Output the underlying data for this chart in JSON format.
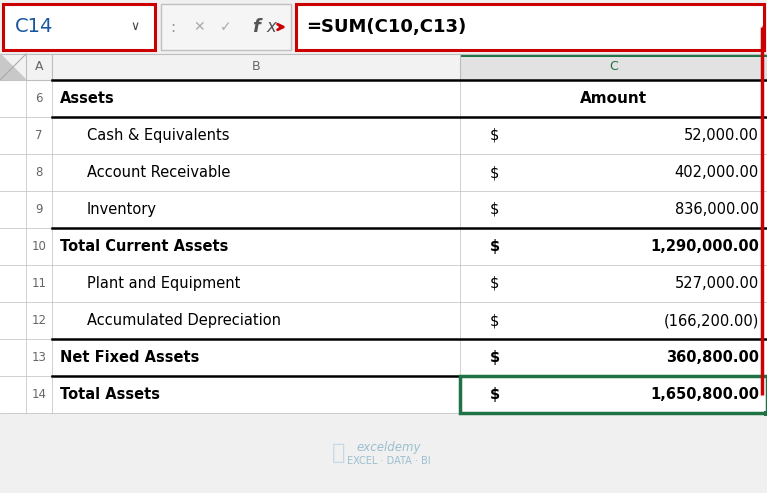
{
  "formula_bar": {
    "cell_ref": "C14",
    "formula": "=SUM(C10,C13)"
  },
  "rows": [
    {
      "row": 6,
      "label": "Assets",
      "indent": false,
      "bold": true,
      "dollar": "",
      "amount": "Amount",
      "amount_bold": true,
      "border_top": false,
      "border_bot": true
    },
    {
      "row": 7,
      "label": "Cash & Equivalents",
      "indent": true,
      "bold": false,
      "dollar": "$",
      "amount": "52,000.00",
      "amount_bold": false,
      "border_top": false,
      "border_bot": false
    },
    {
      "row": 8,
      "label": "Account Receivable",
      "indent": true,
      "bold": false,
      "dollar": "$",
      "amount": "402,000.00",
      "amount_bold": false,
      "border_top": false,
      "border_bot": false
    },
    {
      "row": 9,
      "label": "Inventory",
      "indent": true,
      "bold": false,
      "dollar": "$",
      "amount": "836,000.00",
      "amount_bold": false,
      "border_top": false,
      "border_bot": false
    },
    {
      "row": 10,
      "label": "Total Current Assets",
      "indent": false,
      "bold": true,
      "dollar": "$",
      "amount": "1,290,000.00",
      "amount_bold": true,
      "border_top": true,
      "border_bot": false
    },
    {
      "row": 11,
      "label": "Plant and Equipment",
      "indent": true,
      "bold": false,
      "dollar": "$",
      "amount": "527,000.00",
      "amount_bold": false,
      "border_top": false,
      "border_bot": false
    },
    {
      "row": 12,
      "label": "Accumulated Depreciation",
      "indent": true,
      "bold": false,
      "dollar": "$",
      "amount": "(166,200.00)",
      "amount_bold": false,
      "border_top": false,
      "border_bot": false
    },
    {
      "row": 13,
      "label": "Net Fixed Assets",
      "indent": false,
      "bold": true,
      "dollar": "$",
      "amount": "360,800.00",
      "amount_bold": true,
      "border_top": true,
      "border_bot": false
    },
    {
      "row": 14,
      "label": "Total Assets",
      "indent": false,
      "bold": true,
      "dollar": "$",
      "amount": "1,650,800.00",
      "amount_bold": true,
      "border_top": true,
      "border_bot": false
    }
  ],
  "watermark_line1": "exceldemy",
  "watermark_line2": "EXCEL · DATA · BI",
  "arrow_color": "#cc0000",
  "cell14_border": "#1f7244",
  "grid_color": "#bdbdbd",
  "row_num_color": "#666666",
  "header_bg": "#f2f2f2",
  "col_c_header_bg": "#e2e2e2",
  "col_c_header_green_bar": "#1f7244",
  "formula_bar_bg": "#f0f0f0",
  "icon_area_bg": "#f5f5f5"
}
